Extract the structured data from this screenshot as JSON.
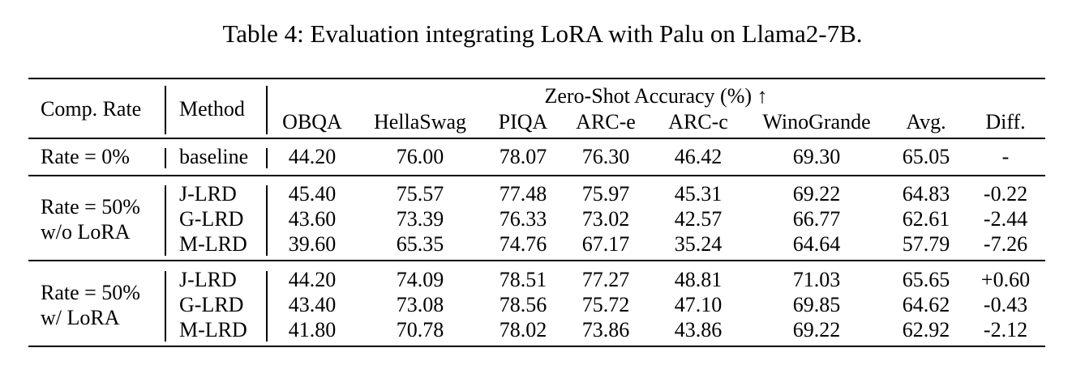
{
  "caption": "Table 4: Evaluation integrating LoRA with Palu on Llama2-7B.",
  "header": {
    "comp_rate": "Comp. Rate",
    "method": "Method",
    "group": "Zero-Shot Accuracy (%) ↑",
    "columns": [
      "OBQA",
      "HellaSwag",
      "PIQA",
      "ARC-e",
      "ARC-c",
      "WinoGrande",
      "Avg.",
      "Diff."
    ]
  },
  "groups": [
    {
      "label_lines": [
        "Rate = 0%"
      ],
      "rows": [
        {
          "method": "baseline",
          "values": [
            "44.20",
            "76.00",
            "78.07",
            "76.30",
            "46.42",
            "69.30",
            "65.05",
            "-"
          ]
        }
      ]
    },
    {
      "label_lines": [
        "Rate = 50%",
        "w/o LoRA"
      ],
      "rows": [
        {
          "method": "J-LRD",
          "values": [
            "45.40",
            "75.57",
            "77.48",
            "75.97",
            "45.31",
            "69.22",
            "64.83",
            "-0.22"
          ]
        },
        {
          "method": "G-LRD",
          "values": [
            "43.60",
            "73.39",
            "76.33",
            "73.02",
            "42.57",
            "66.77",
            "62.61",
            "-2.44"
          ]
        },
        {
          "method": "M-LRD",
          "values": [
            "39.60",
            "65.35",
            "74.76",
            "67.17",
            "35.24",
            "64.64",
            "57.79",
            "-7.26"
          ]
        }
      ]
    },
    {
      "label_lines": [
        "Rate = 50%",
        "w/ LoRA"
      ],
      "rows": [
        {
          "method": "J-LRD",
          "values": [
            "44.20",
            "74.09",
            "78.51",
            "77.27",
            "48.81",
            "71.03",
            "65.65",
            "+0.60"
          ]
        },
        {
          "method": "G-LRD",
          "values": [
            "43.40",
            "73.08",
            "78.56",
            "75.72",
            "47.10",
            "69.85",
            "64.62",
            "-0.43"
          ]
        },
        {
          "method": "M-LRD",
          "values": [
            "41.80",
            "70.78",
            "78.02",
            "73.86",
            "43.86",
            "69.22",
            "62.92",
            "-2.12"
          ]
        }
      ]
    }
  ]
}
